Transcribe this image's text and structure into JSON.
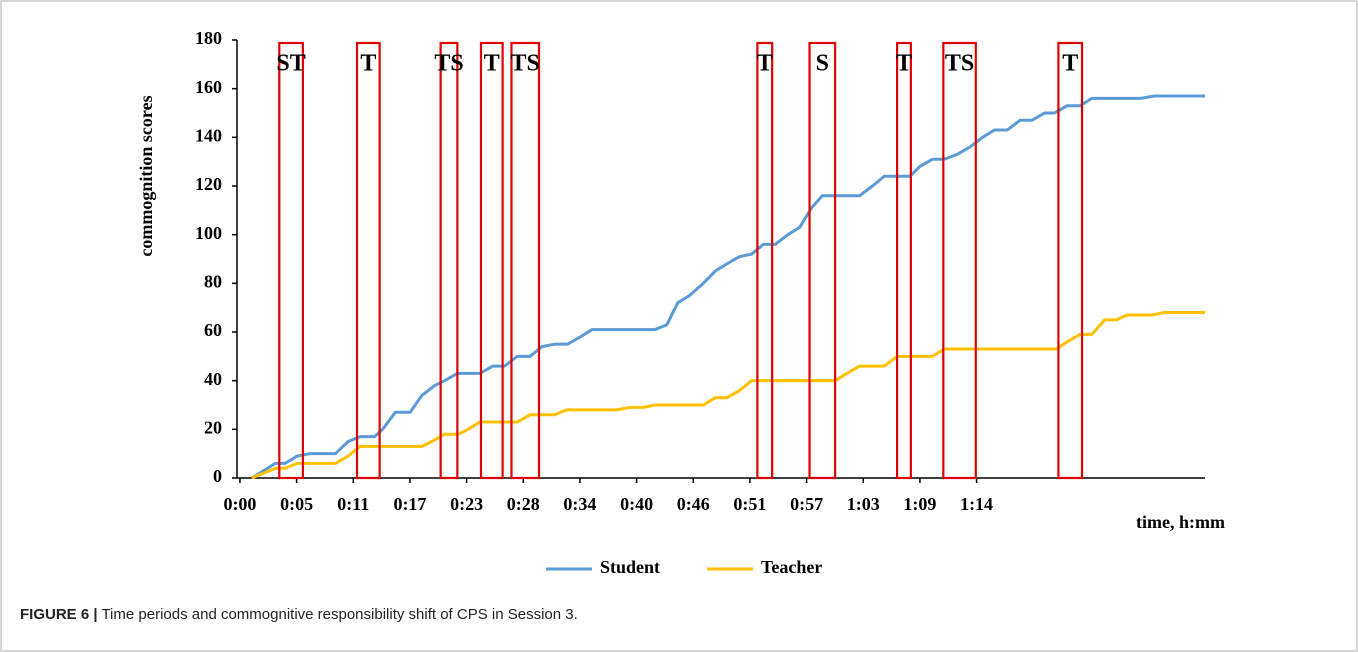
{
  "chart_data": {
    "type": "line",
    "ylabel": "commognition scores",
    "xlabel": "time, h:mm",
    "xlim": [
      -0.3,
      98.1
    ],
    "ylim": [
      0,
      180
    ],
    "yticks": [
      0,
      20,
      40,
      60,
      80,
      100,
      120,
      140,
      160,
      180
    ],
    "xticks": [
      {
        "value": 0,
        "label": "0:00"
      },
      {
        "value": 5.76,
        "label": "0:05"
      },
      {
        "value": 11.52,
        "label": "0:11"
      },
      {
        "value": 17.28,
        "label": "0:17"
      },
      {
        "value": 23.04,
        "label": "0:23"
      },
      {
        "value": 28.8,
        "label": "0:28"
      },
      {
        "value": 34.56,
        "label": "0:34"
      },
      {
        "value": 40.32,
        "label": "0:40"
      },
      {
        "value": 46.08,
        "label": "0:46"
      },
      {
        "value": 51.84,
        "label": "0:51"
      },
      {
        "value": 57.6,
        "label": "0:57"
      },
      {
        "value": 63.36,
        "label": "1:03"
      },
      {
        "value": 69.12,
        "label": "1:09"
      },
      {
        "value": 74.88,
        "label": "1:14"
      }
    ],
    "grid": false,
    "legend": "bottom",
    "series": [
      {
        "name": "Student",
        "color": "#5b9bd5",
        "x": [
          1.2,
          3.6,
          4.6,
          5.8,
          7.1,
          9.7,
          11.0,
          12.2,
          13.7,
          14.5,
          15.8,
          17.3,
          18.5,
          19.8,
          20.8,
          22.1,
          24.4,
          25.7,
          26.9,
          28.2,
          29.5,
          30.7,
          32.0,
          33.3,
          34.6,
          35.8,
          42.2,
          43.4,
          44.5,
          45.7,
          47.1,
          48.3,
          49.5,
          50.8,
          52.0,
          53.2,
          54.4,
          55.7,
          56.9,
          58.1,
          59.2,
          63.0,
          64.3,
          65.5,
          68.1,
          69.1,
          70.4,
          71.6,
          72.9,
          74.2,
          75.5,
          76.7,
          78.0,
          79.3,
          80.5,
          81.8,
          82.8,
          84.1,
          85.4,
          86.6,
          91.5,
          93.0,
          98.1
        ],
        "values": [
          0,
          6,
          6,
          9,
          10,
          10,
          15,
          17,
          17,
          20,
          27,
          27,
          34,
          38,
          40,
          43,
          43,
          46,
          46,
          50,
          50,
          54,
          55,
          55,
          58,
          61,
          61,
          63,
          72,
          75,
          80,
          85,
          88,
          91,
          92,
          96,
          96,
          100,
          103,
          111,
          116,
          116,
          120,
          124,
          124,
          128,
          131,
          131,
          133,
          136,
          140,
          143,
          143,
          147,
          147,
          150,
          150,
          153,
          153,
          156,
          156,
          157,
          157
        ]
      },
      {
        "name": "Teacher",
        "color": "#ffc000",
        "x": [
          1.2,
          3.6,
          4.6,
          5.8,
          9.7,
          11.0,
          12.2,
          18.5,
          19.5,
          20.8,
          22.2,
          23.2,
          24.4,
          28.2,
          29.5,
          32.0,
          33.2,
          38.3,
          39.6,
          41.0,
          42.2,
          47.1,
          48.3,
          49.5,
          50.8,
          52.0,
          60.5,
          61.7,
          63.0,
          65.5,
          66.8,
          70.4,
          71.6,
          83.0,
          84.1,
          85.4,
          86.6,
          87.9,
          89.1,
          90.2,
          92.7,
          94.0,
          98.1
        ],
        "values": [
          0,
          4,
          4,
          6,
          6,
          9,
          13,
          13,
          15,
          18,
          18,
          20,
          23,
          23,
          26,
          26,
          28,
          28,
          29,
          29,
          30,
          30,
          33,
          33,
          36,
          40,
          40,
          43,
          46,
          46,
          50,
          50,
          53,
          53,
          56,
          59,
          59,
          65,
          65,
          67,
          67,
          68,
          68
        ]
      }
    ],
    "annotation_color": "#e00000",
    "annotations": [
      {
        "label": "ST",
        "x0": 4.0,
        "x1": 6.4
      },
      {
        "label": "T",
        "x0": 11.9,
        "x1": 14.2
      },
      {
        "label": "TS",
        "x0": 20.4,
        "x1": 22.1
      },
      {
        "label": "T",
        "x0": 24.5,
        "x1": 26.7
      },
      {
        "label": "TS",
        "x0": 27.6,
        "x1": 30.4
      },
      {
        "label": "T",
        "x0": 52.6,
        "x1": 54.1
      },
      {
        "label": "S",
        "x0": 57.9,
        "x1": 60.5
      },
      {
        "label": "T",
        "x0": 66.8,
        "x1": 68.2
      },
      {
        "label": "TS",
        "x0": 71.5,
        "x1": 74.8
      },
      {
        "label": "T",
        "x0": 83.2,
        "x1": 85.6
      }
    ]
  },
  "caption": {
    "label": "FIGURE 6 |",
    "text": "Time periods and commognitive responsibility shift of CPS in Session 3."
  }
}
